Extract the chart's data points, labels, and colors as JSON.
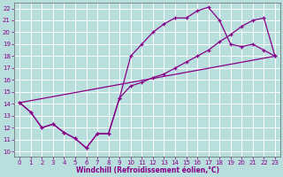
{
  "xlabel": "Windchill (Refroidissement éolien,°C)",
  "bg_color": "#b8dede",
  "line_color": "#880088",
  "xlim_min": -0.5,
  "xlim_max": 23.5,
  "ylim_min": 9.6,
  "ylim_max": 22.5,
  "xticks": [
    0,
    1,
    2,
    3,
    4,
    5,
    6,
    7,
    8,
    9,
    10,
    11,
    12,
    13,
    14,
    15,
    16,
    17,
    18,
    19,
    20,
    21,
    22,
    23
  ],
  "yticks": [
    10,
    11,
    12,
    13,
    14,
    15,
    16,
    17,
    18,
    19,
    20,
    21,
    22
  ],
  "line1_x": [
    0,
    1,
    2,
    3,
    4,
    5,
    6,
    7,
    8,
    9,
    10,
    11,
    12,
    13,
    14,
    15,
    16,
    17,
    18,
    19,
    20,
    21,
    22,
    23
  ],
  "line1_y": [
    14.1,
    13.3,
    12.0,
    12.3,
    11.6,
    11.1,
    10.3,
    11.5,
    11.5,
    14.5,
    18.0,
    19.0,
    20.0,
    20.7,
    21.2,
    21.2,
    21.8,
    22.1,
    21.0,
    19.0,
    18.8,
    19.0,
    18.5,
    18.0
  ],
  "line2_x": [
    0,
    1,
    2,
    3,
    4,
    5,
    6,
    7,
    8,
    9,
    10,
    11,
    12,
    13,
    14,
    15,
    16,
    17,
    18,
    19,
    20,
    21,
    22,
    23
  ],
  "line2_y": [
    14.1,
    13.3,
    12.0,
    12.3,
    11.6,
    11.1,
    10.3,
    11.5,
    11.5,
    14.5,
    15.5,
    15.8,
    16.2,
    16.5,
    17.0,
    17.5,
    18.0,
    18.5,
    19.2,
    19.8,
    20.5,
    21.0,
    21.2,
    18.0
  ],
  "line3_x": [
    0,
    23
  ],
  "line3_y": [
    14.1,
    18.0
  ],
  "tick_fontsize": 5.0,
  "xlabel_fontsize": 5.5
}
